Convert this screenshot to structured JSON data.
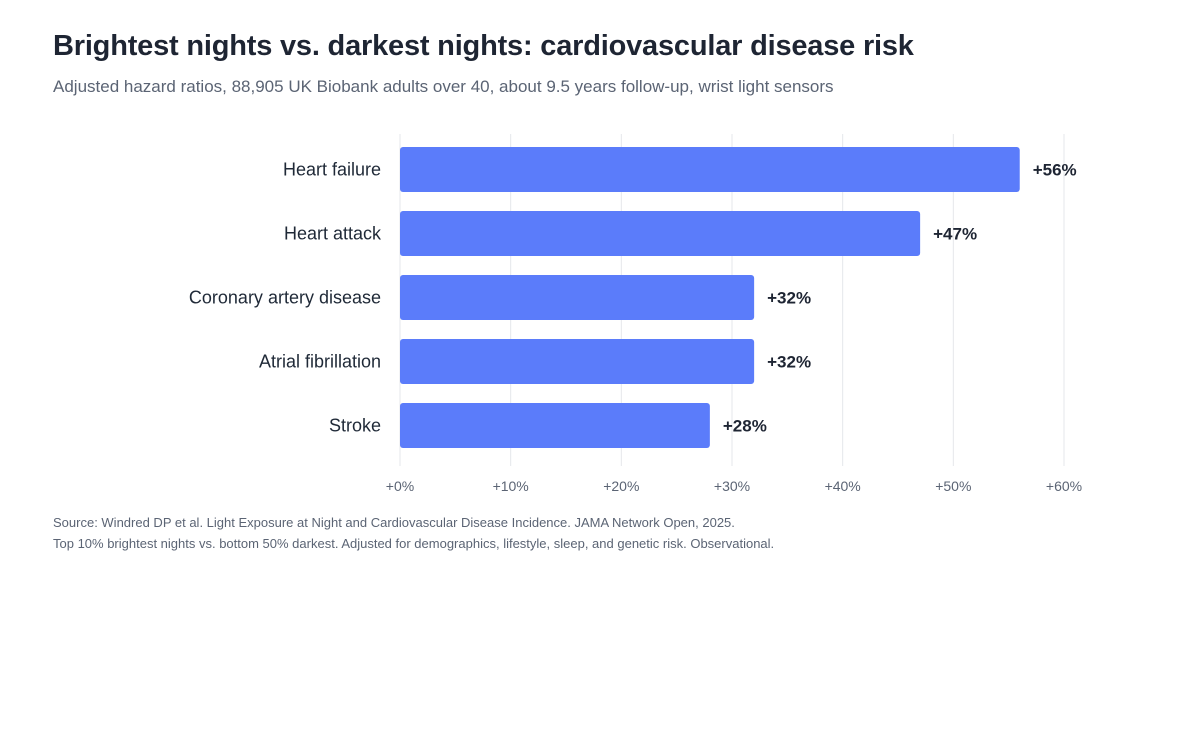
{
  "header": {
    "title": "Brightest nights vs. darkest nights: cardiovascular disease risk",
    "subtitle": "Adjusted hazard ratios, 88,905 UK Biobank adults over 40, about 9.5 years follow-up, wrist light sensors"
  },
  "footer": {
    "source": "Source: Windred DP et al. Light Exposure at Night and Cardiovascular Disease Incidence. JAMA Network Open, 2025.",
    "note": "Top 10% brightest nights vs. bottom 50% darkest. Adjusted for demographics, lifestyle, sleep, and genetic risk. Observational."
  },
  "chart_data": {
    "type": "bar",
    "orientation": "horizontal",
    "categories": [
      "Heart failure",
      "Heart attack",
      "Coronary artery disease",
      "Atrial fibrillation",
      "Stroke"
    ],
    "values": [
      56,
      47,
      32,
      32,
      28
    ],
    "value_labels": [
      "+56%",
      "+47%",
      "+32%",
      "+32%",
      "+28%"
    ],
    "xlim": [
      0,
      60
    ],
    "xticks": [
      0,
      10,
      20,
      30,
      40,
      50,
      60
    ],
    "xtick_labels": [
      "+0%",
      "+10%",
      "+20%",
      "+30%",
      "+40%",
      "+50%",
      "+60%"
    ],
    "grid": "vertical",
    "bar_color": "#5b7cfa",
    "gridline_color": "#e5e7eb"
  }
}
